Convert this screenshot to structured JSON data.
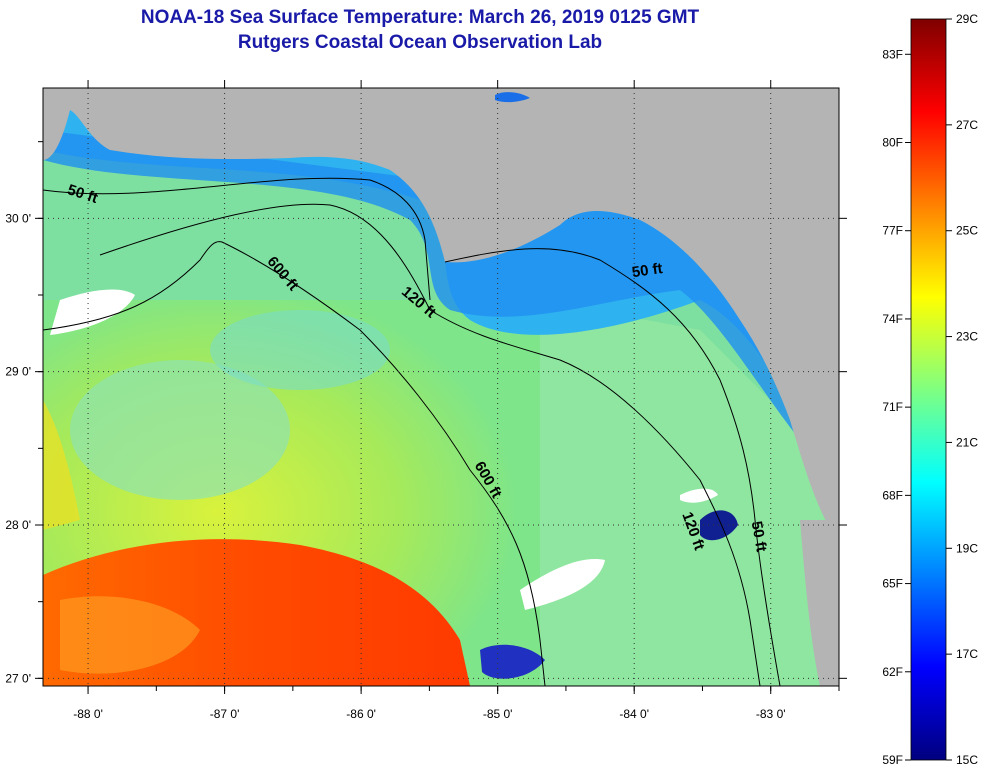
{
  "header": {
    "title": "NOAA-18 Sea Surface Temperature:  March 26, 2019 0125 GMT",
    "subtitle": "Rutgers Coastal Ocean Observation Lab"
  },
  "map": {
    "lon_range": [
      -88.33,
      -82.5
    ],
    "lat_range": [
      26.95,
      30.85
    ],
    "lon_ticks": [
      {
        "value": -88,
        "label": "-88 0'"
      },
      {
        "value": -87,
        "label": "-87 0'"
      },
      {
        "value": -86,
        "label": "-86 0'"
      },
      {
        "value": -85,
        "label": "-85 0'"
      },
      {
        "value": -84,
        "label": "-84 0'"
      },
      {
        "value": -83,
        "label": "-83 0'"
      }
    ],
    "lat_ticks": [
      {
        "value": 30,
        "label": "30 0'"
      },
      {
        "value": 29,
        "label": "29 0'"
      },
      {
        "value": 28,
        "label": "28 0'"
      },
      {
        "value": 27,
        "label": "27 0'"
      }
    ],
    "contour_labels": [
      {
        "text": "50 ft",
        "lon": -88.05,
        "lat": 30.13,
        "angle": 18
      },
      {
        "text": "600 ft",
        "lon": -86.6,
        "lat": 29.62,
        "angle": 50
      },
      {
        "text": "120 ft",
        "lon": -85.6,
        "lat": 29.43,
        "angle": 40
      },
      {
        "text": "50 ft",
        "lon": -83.9,
        "lat": 29.63,
        "angle": -8
      },
      {
        "text": "600 ft",
        "lon": -85.1,
        "lat": 28.28,
        "angle": 60
      },
      {
        "text": "120 ft",
        "lon": -83.6,
        "lat": 27.95,
        "angle": 70
      },
      {
        "text": "50 ft",
        "lon": -83.12,
        "lat": 27.92,
        "angle": 80
      }
    ],
    "colors": {
      "land": "#b4b4b4",
      "gridline": "#333333"
    }
  },
  "colorbar": {
    "min_c": 15,
    "max_c": 29,
    "celsius_labels": [
      {
        "value": 29,
        "label": "29C"
      },
      {
        "value": 27,
        "label": "27C"
      },
      {
        "value": 25,
        "label": "25C"
      },
      {
        "value": 23,
        "label": "23C"
      },
      {
        "value": 21,
        "label": "21C"
      },
      {
        "value": 19,
        "label": "19C"
      },
      {
        "value": 17,
        "label": "17C"
      },
      {
        "value": 15,
        "label": "15C"
      }
    ],
    "fahrenheit_labels": [
      {
        "value": 83,
        "label": "83F"
      },
      {
        "value": 80,
        "label": "80F"
      },
      {
        "value": 77,
        "label": "77F"
      },
      {
        "value": 74,
        "label": "74F"
      },
      {
        "value": 71,
        "label": "71F"
      },
      {
        "value": 68,
        "label": "68F"
      },
      {
        "value": 65,
        "label": "65F"
      },
      {
        "value": 62,
        "label": "62F"
      },
      {
        "value": 59,
        "label": "59F"
      }
    ],
    "gradient": [
      "#00007f",
      "#0000ff",
      "#0080ff",
      "#00ffff",
      "#80ff80",
      "#ffff00",
      "#ff8000",
      "#ff0000",
      "#7f0000"
    ]
  }
}
